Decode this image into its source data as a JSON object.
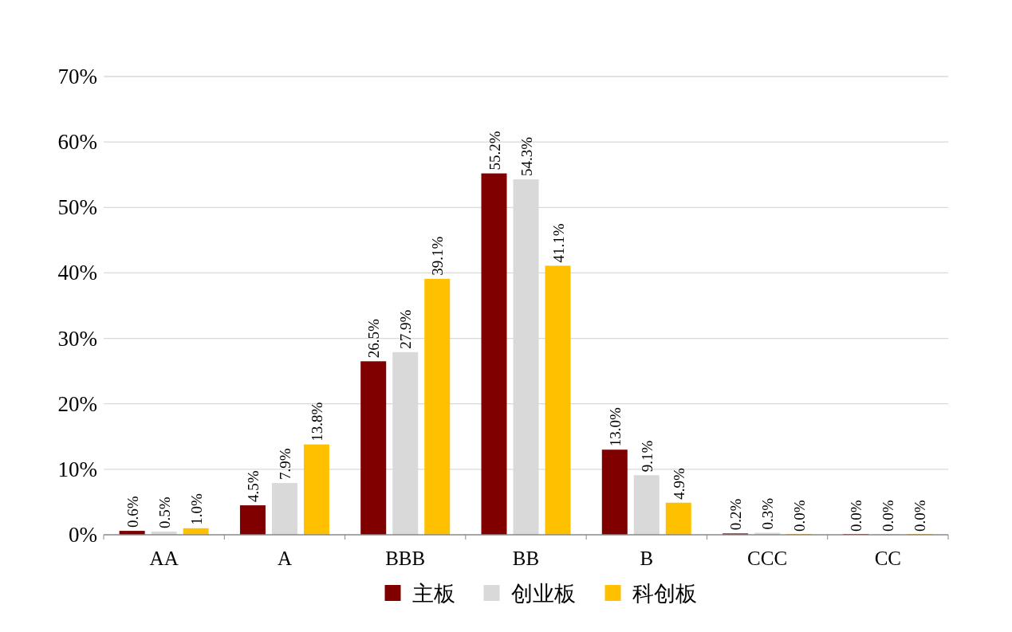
{
  "chart_data": {
    "type": "bar",
    "categories": [
      "AA",
      "A",
      "BBB",
      "BB",
      "B",
      "CCC",
      "CC"
    ],
    "series": [
      {
        "name": "主板",
        "color": "#800000",
        "values": [
          0.6,
          4.5,
          26.5,
          55.2,
          13.0,
          0.2,
          0.0
        ],
        "value_labels": [
          "0.6%",
          "4.5%",
          "26.5%",
          "55.2%",
          "13.0%",
          "0.2%",
          "0.0%"
        ]
      },
      {
        "name": "创业板",
        "color": "#d9d9d9",
        "values": [
          0.5,
          7.9,
          27.9,
          54.3,
          9.1,
          0.3,
          0.0
        ],
        "value_labels": [
          "0.5%",
          "7.9%",
          "27.9%",
          "54.3%",
          "9.1%",
          "0.3%",
          "0.0%"
        ]
      },
      {
        "name": "科创板",
        "color": "#ffc000",
        "values": [
          1.0,
          13.8,
          39.1,
          41.1,
          4.9,
          0.0,
          0.0
        ],
        "value_labels": [
          "1.0%",
          "13.8%",
          "39.1%",
          "41.1%",
          "4.9%",
          "0.0%",
          "0.0%"
        ]
      }
    ],
    "ylim": [
      0,
      70
    ],
    "yticks": [
      {
        "value": 0,
        "label": "0%"
      },
      {
        "value": 10,
        "label": "10%"
      },
      {
        "value": 20,
        "label": "20%"
      },
      {
        "value": 30,
        "label": "30%"
      },
      {
        "value": 40,
        "label": "40%"
      },
      {
        "value": 50,
        "label": "50%"
      },
      {
        "value": 60,
        "label": "60%"
      },
      {
        "value": 70,
        "label": "70%"
      }
    ],
    "grid": "y",
    "legend": "bottom"
  }
}
